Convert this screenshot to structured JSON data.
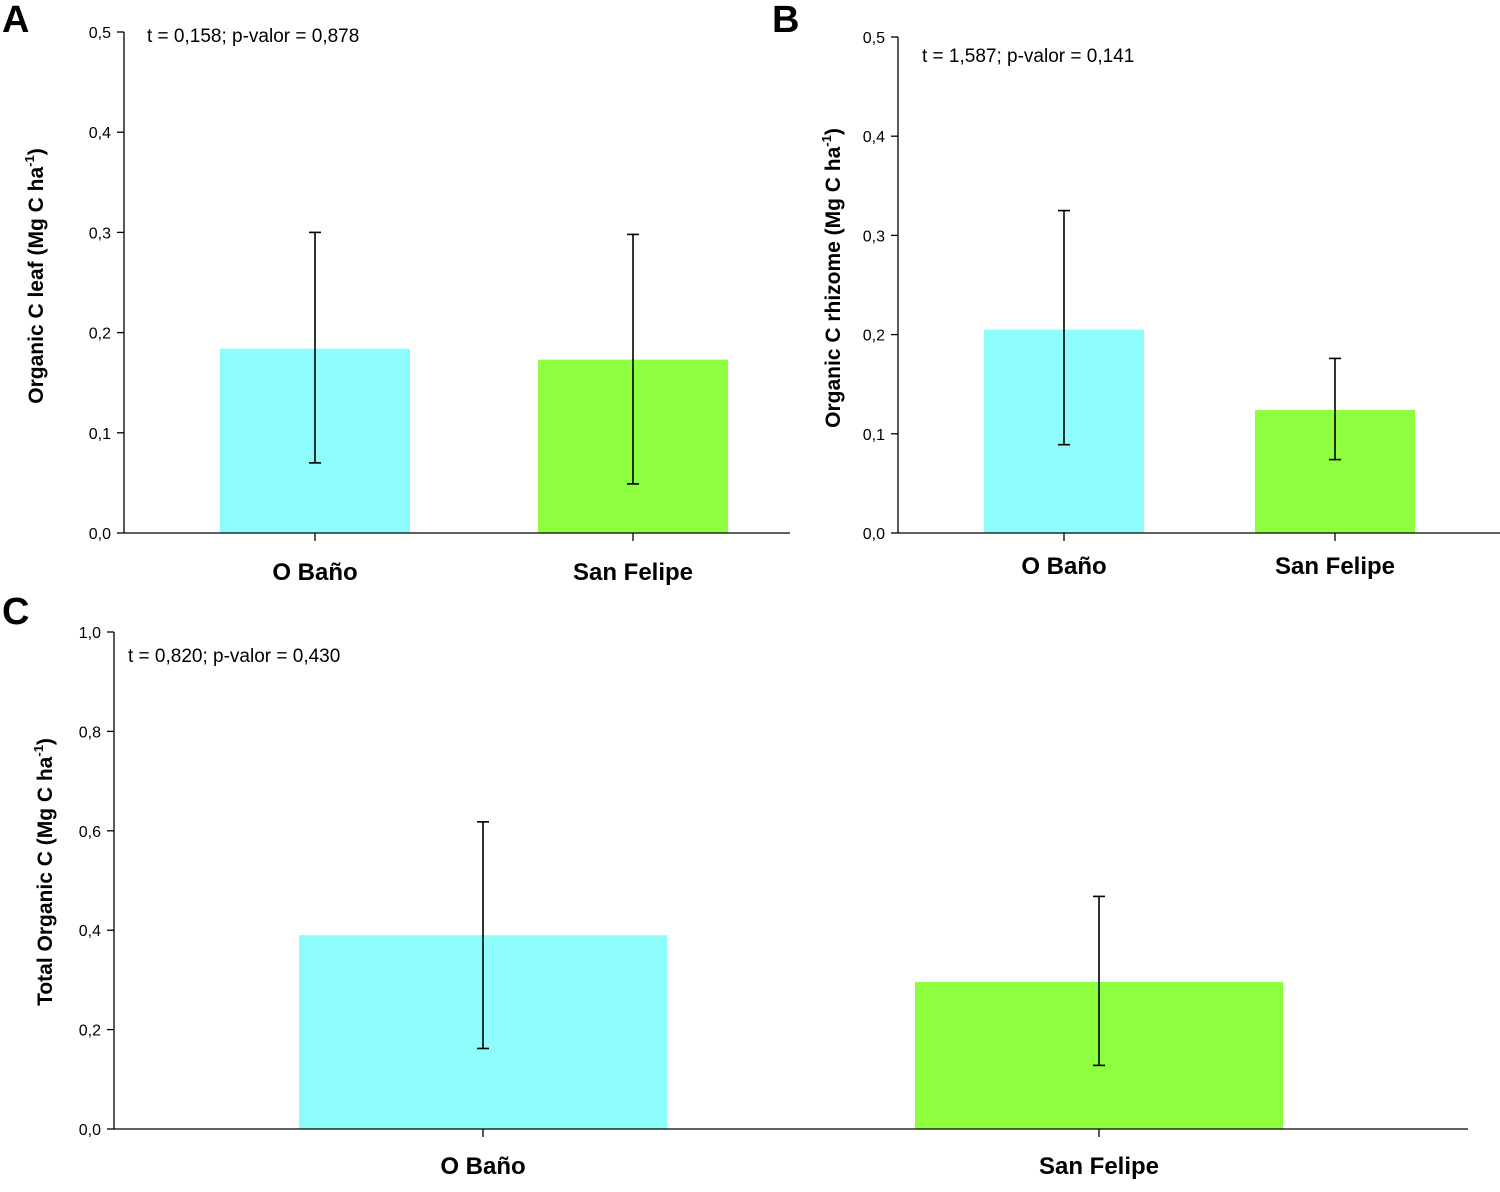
{
  "chart_data": [
    {
      "panel": "A",
      "type": "bar",
      "categories": [
        "O Baño",
        "San Felipe"
      ],
      "values": [
        0.184,
        0.173
      ],
      "error_low": [
        0.07,
        0.049
      ],
      "error_high": [
        0.3,
        0.298
      ],
      "colors": [
        "#8ffcfc",
        "#8eff3f"
      ],
      "ylabel": "Organic C leaf (Mg C ha",
      "ylabel_sup": "-1",
      "ylabel_close": ")",
      "ylim": [
        0,
        0.5
      ],
      "yticks": [
        0,
        0.1,
        0.2,
        0.3,
        0.4,
        0.5
      ],
      "ytick_labels": [
        "0,0",
        "0,1",
        "0,2",
        "0,3",
        "0,4",
        "0,5"
      ],
      "annotation": "t = 0,158; p-valor = 0,878"
    },
    {
      "panel": "B",
      "type": "bar",
      "categories": [
        "O Baño",
        "San Felipe"
      ],
      "values": [
        0.205,
        0.124
      ],
      "error_low": [
        0.089,
        0.074
      ],
      "error_high": [
        0.325,
        0.176
      ],
      "colors": [
        "#8ffcfc",
        "#8eff3f"
      ],
      "ylabel": "Organic C rhizome (Mg C ha",
      "ylabel_sup": "-1",
      "ylabel_close": ")",
      "ylim": [
        0,
        0.5
      ],
      "yticks": [
        0,
        0.1,
        0.2,
        0.3,
        0.4,
        0.5
      ],
      "ytick_labels": [
        "0,0",
        "0,1",
        "0,2",
        "0,3",
        "0,4",
        "0,5"
      ],
      "annotation": "t = 1,587; p-valor = 0,141"
    },
    {
      "panel": "C",
      "type": "bar",
      "categories": [
        "O Baño",
        "San Felipe"
      ],
      "values": [
        0.39,
        0.296
      ],
      "error_low": [
        0.162,
        0.128
      ],
      "error_high": [
        0.618,
        0.468
      ],
      "colors": [
        "#8ffcfc",
        "#8eff3f"
      ],
      "ylabel": "Total Organic C (Mg C ha",
      "ylabel_sup": "-1",
      "ylabel_close": ")",
      "ylim": [
        0,
        1.0
      ],
      "yticks": [
        0,
        0.2,
        0.4,
        0.6,
        0.8,
        1.0
      ],
      "ytick_labels": [
        "0,0",
        "0,2",
        "0,4",
        "0,6",
        "0,8",
        "1,0"
      ],
      "annotation": "t = 0,820; p-valor = 0,430"
    }
  ]
}
